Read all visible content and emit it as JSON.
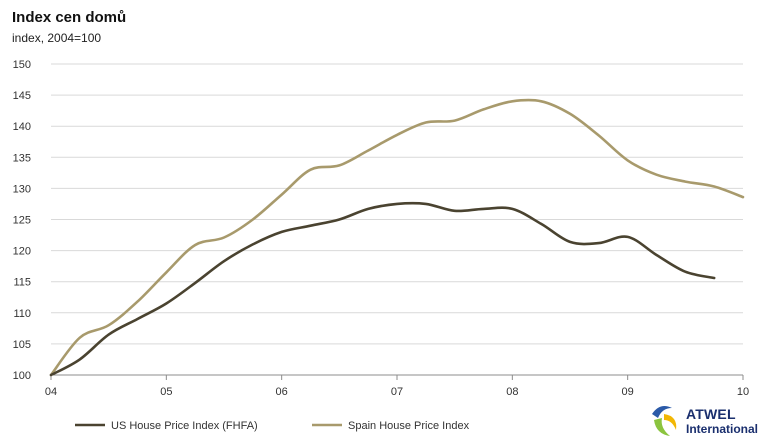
{
  "chart_data": {
    "type": "line",
    "title": "Index cen domů",
    "subtitle": "index, 2004=100",
    "xlabel": "",
    "ylabel": "",
    "ylim": [
      100,
      150
    ],
    "yticks": [
      100,
      105,
      110,
      115,
      120,
      125,
      130,
      135,
      140,
      145,
      150
    ],
    "xlim": [
      2004.0,
      2010.0
    ],
    "xticks": [
      {
        "value": 2004,
        "label": "04"
      },
      {
        "value": 2005,
        "label": "05"
      },
      {
        "value": 2006,
        "label": "06"
      },
      {
        "value": 2007,
        "label": "07"
      },
      {
        "value": 2008,
        "label": "08"
      },
      {
        "value": 2009,
        "label": "09"
      },
      {
        "value": 2010,
        "label": "10"
      }
    ],
    "grid": "horizontal",
    "legend_position": "bottom",
    "series": [
      {
        "name": "US House Price Index (FHFA)",
        "color": "#4a4330",
        "x": [
          2004.0,
          2004.25,
          2004.5,
          2004.75,
          2005.0,
          2005.25,
          2005.5,
          2005.75,
          2006.0,
          2006.25,
          2006.5,
          2006.75,
          2007.0,
          2007.25,
          2007.5,
          2007.75,
          2008.0,
          2008.25,
          2008.5,
          2008.75,
          2009.0,
          2009.25,
          2009.5,
          2009.75
        ],
        "y": [
          100.0,
          102.5,
          106.5,
          109.0,
          111.5,
          114.8,
          118.3,
          121.0,
          123.0,
          124.0,
          125.0,
          126.7,
          127.5,
          127.5,
          126.4,
          126.7,
          126.7,
          124.3,
          121.4,
          121.2,
          122.2,
          119.3,
          116.6,
          115.6
        ]
      },
      {
        "name": "Spain House Price Index",
        "color": "#a89a6c",
        "x": [
          2004.0,
          2004.25,
          2004.5,
          2004.75,
          2005.0,
          2005.25,
          2005.5,
          2005.75,
          2006.0,
          2006.25,
          2006.5,
          2006.75,
          2007.0,
          2007.25,
          2007.5,
          2007.75,
          2008.0,
          2008.25,
          2008.5,
          2008.75,
          2009.0,
          2009.25,
          2009.5,
          2009.75,
          2010.0
        ],
        "y": [
          100.0,
          106.0,
          108.0,
          111.8,
          116.5,
          120.9,
          122.1,
          125.0,
          129.0,
          133.0,
          133.7,
          136.1,
          138.6,
          140.6,
          140.9,
          142.7,
          144.0,
          144.0,
          142.0,
          138.5,
          134.5,
          132.2,
          131.1,
          130.3,
          128.6
        ]
      }
    ]
  },
  "brand": {
    "name": "ATWEL",
    "subtitle": "International",
    "colors": [
      "#2b5aa8",
      "#8bc43f",
      "#f2b705"
    ]
  }
}
